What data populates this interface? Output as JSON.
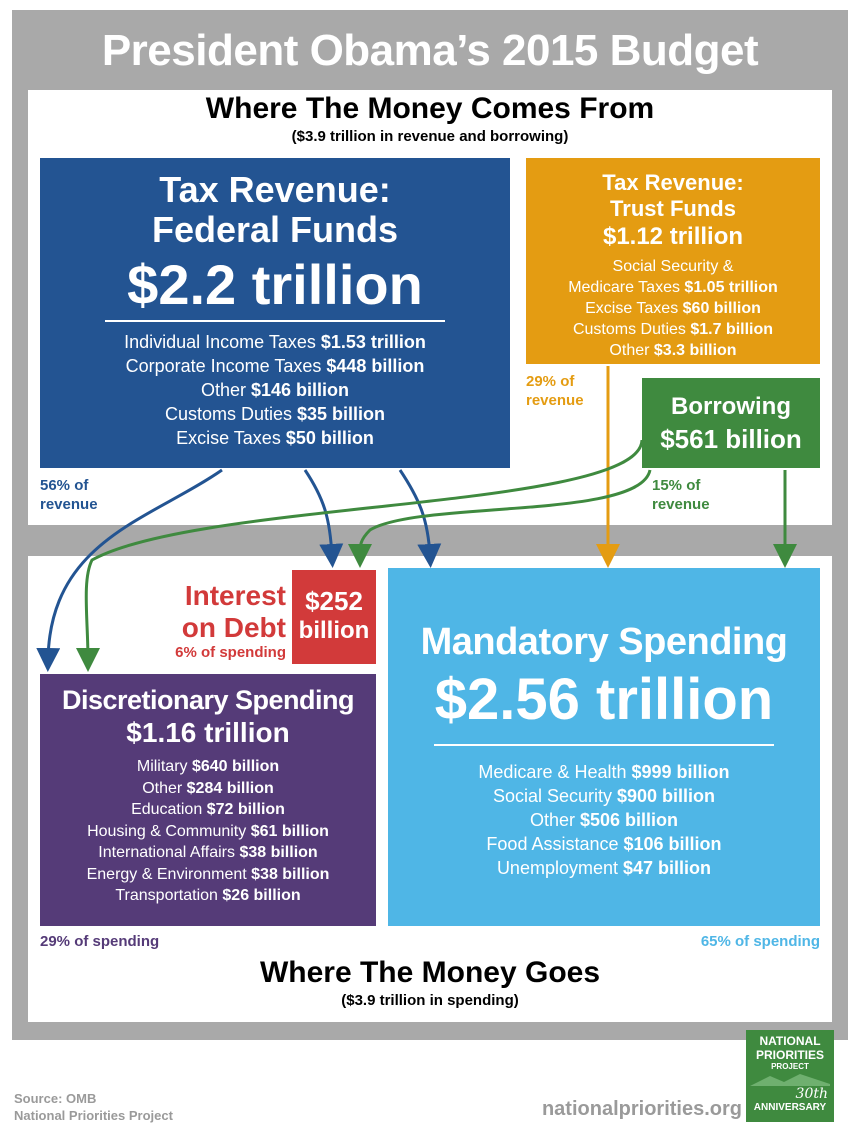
{
  "title": "President Obama’s 2015 Budget",
  "comes_from": {
    "heading": "Where The Money Comes From",
    "subheading": "($3.9 trillion in revenue and borrowing)"
  },
  "federal_funds": {
    "title1": "Tax Revenue:",
    "title2": "Federal Funds",
    "amount": "$2.2 trillion",
    "items": [
      {
        "label": "Individual Income Taxes",
        "value": "$1.53 trillion"
      },
      {
        "label": "Corporate Income Taxes",
        "value": "$448 billion"
      },
      {
        "label": "Other",
        "value": "$146 billion"
      },
      {
        "label": "Customs Duties",
        "value": "$35 billion"
      },
      {
        "label": "Excise Taxes",
        "value": "$50 billion"
      }
    ],
    "pct_line1": "56% of",
    "pct_line2": "revenue",
    "color": "#235492"
  },
  "trust_funds": {
    "title1": "Tax Revenue:",
    "title2": "Trust Funds",
    "amount": "$1.12 trillion",
    "items": [
      {
        "label": "Social Security &",
        "value": ""
      },
      {
        "label": "Medicare Taxes",
        "value": "$1.05 trillion"
      },
      {
        "label": "Excise Taxes",
        "value": "$60 billion"
      },
      {
        "label": "Customs Duties",
        "value": "$1.7 billion"
      },
      {
        "label": "Other",
        "value": "$3.3 billion"
      }
    ],
    "pct_line1": "29% of",
    "pct_line2": "revenue",
    "color": "#e49c12"
  },
  "borrowing": {
    "title": "Borrowing",
    "amount": "$561 billion",
    "pct_line1": "15% of",
    "pct_line2": "revenue",
    "color": "#3f8a3f"
  },
  "interest": {
    "label1": "Interest",
    "label2": "on Debt",
    "amount1": "$252",
    "amount2": "billion",
    "pct": "6% of spending",
    "color": "#d23a3a"
  },
  "discretionary": {
    "title": "Discretionary Spending",
    "amount": "$1.16 trillion",
    "items": [
      {
        "label": "Military",
        "value": "$640 billion"
      },
      {
        "label": "Other",
        "value": "$284 billion"
      },
      {
        "label": "Education",
        "value": "$72 billion"
      },
      {
        "label": "Housing & Community",
        "value": "$61 billion"
      },
      {
        "label": "International Affairs",
        "value": "$38 billion"
      },
      {
        "label": "Energy & Environment",
        "value": "$38 billion"
      },
      {
        "label": "Transportation",
        "value": "$26 billion"
      }
    ],
    "pct": "29% of spending",
    "color": "#553b78"
  },
  "mandatory": {
    "title": "Mandatory Spending",
    "amount": "$2.56 trillion",
    "items": [
      {
        "label": "Medicare & Health",
        "value": "$999 billion"
      },
      {
        "label": "Social Security",
        "value": "$900 billion"
      },
      {
        "label": "Other",
        "value": "$506 billion"
      },
      {
        "label": "Food Assistance",
        "value": "$106 billion"
      },
      {
        "label": "Unemployment",
        "value": "$47 billion"
      }
    ],
    "pct": "65% of spending",
    "color": "#4fb6e6"
  },
  "goes": {
    "heading": "Where The Money Goes",
    "subheading": "($3.9 trillion in spending)"
  },
  "footer": {
    "source1": "Source: OMB",
    "source2": "National Priorities Project",
    "website": "nationalpriorities.org",
    "logo_line1": "NATIONAL",
    "logo_line2": "PRIORITIES",
    "logo_line3": "PROJECT",
    "logo_30": "30th",
    "logo_anniv": "ANNIVERSARY"
  }
}
